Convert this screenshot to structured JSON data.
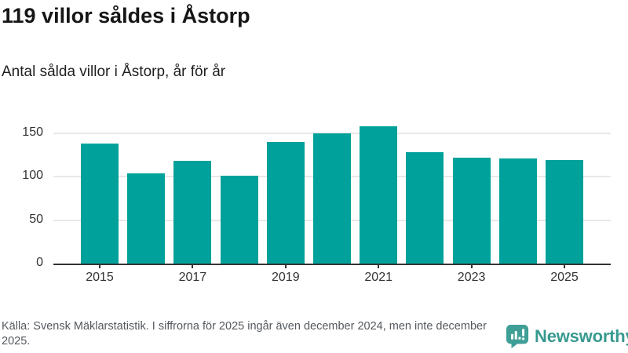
{
  "header": {
    "title": "119 villor såldes i Åstorp",
    "subtitle": "Antal sålda villor i Åstorp, år för år"
  },
  "chart_data": {
    "type": "bar",
    "categories": [
      "2015",
      "2016",
      "2017",
      "2018",
      "2019",
      "2020",
      "2021",
      "2022",
      "2023",
      "2024",
      "2025"
    ],
    "values": [
      138,
      104,
      118,
      101,
      140,
      150,
      158,
      128,
      122,
      121,
      119
    ],
    "title": "119 villor såldes i Åstorp",
    "subtitle": "Antal sålda villor i Åstorp, år för år",
    "xlabel": "",
    "ylabel": "",
    "ylim": [
      0,
      167
    ],
    "yticks": [
      0,
      50,
      100,
      150
    ],
    "xtick_labels": [
      "2015",
      "2017",
      "2019",
      "2021",
      "2023",
      "2025"
    ],
    "grid": "horizontal",
    "legend": "none",
    "bar_color": "#00a19a"
  },
  "footer": {
    "source_text": "Källa: Svensk Mäklarstatistik. I siffrorna för 2025 ingår även december 2024, men inte december 2025.",
    "logo_text": "Newsworthy"
  },
  "colors": {
    "bar": "#00a19a",
    "axis": "#333333",
    "gridline": "#e8e8e8",
    "footer_text": "#54595f",
    "logo": "#389a90"
  }
}
